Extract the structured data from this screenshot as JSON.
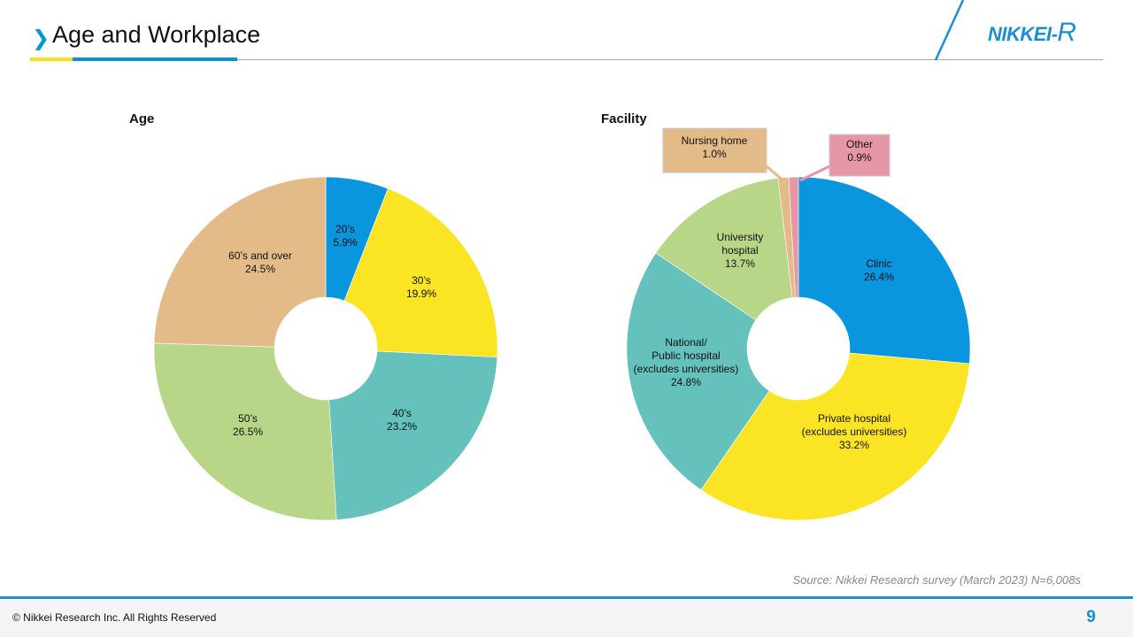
{
  "header": {
    "title": "Age and Workplace",
    "logo": "NIKKEI",
    "logo_r": "R",
    "chevron_icon": "chevron-right-icon",
    "accent_blue": "#0b93d0",
    "accent_yellow": "#f2e21b"
  },
  "chart_data": [
    {
      "type": "pie",
      "donut": true,
      "title": "Age",
      "categories": [
        "20’s",
        "30’s",
        "40’s",
        "50’s",
        "60’s and over"
      ],
      "values": [
        5.9,
        19.9,
        23.2,
        26.5,
        24.5
      ],
      "value_labels": [
        "5.9%",
        "19.9%",
        "23.2%",
        "26.5%",
        "24.5%"
      ],
      "colors": [
        "#0a95df",
        "#fbe424",
        "#65c1bc",
        "#b8d687",
        "#e3bb88"
      ]
    },
    {
      "type": "pie",
      "donut": true,
      "title": "Facility",
      "categories": [
        "Clinic",
        "Private hospital\n(excludes universities)",
        "National/\nPublic hospital\n(excludes universities)",
        "University\nhospital",
        "Nursing home",
        "Other"
      ],
      "values": [
        26.4,
        33.2,
        24.8,
        13.7,
        1.0,
        0.9
      ],
      "value_labels": [
        "26.4%",
        "33.2%",
        "24.8%",
        "13.7%",
        "1.0%",
        "0.9%"
      ],
      "colors": [
        "#0a95df",
        "#fbe424",
        "#65c1bc",
        "#b8d687",
        "#e3bb88",
        "#e697a7"
      ]
    }
  ],
  "source": "Source: Nikkei Research survey (March 2023) N=6,008s",
  "footer": {
    "copyright": "© Nikkei Research Inc. All Rights Reserved",
    "page_number": "9"
  }
}
